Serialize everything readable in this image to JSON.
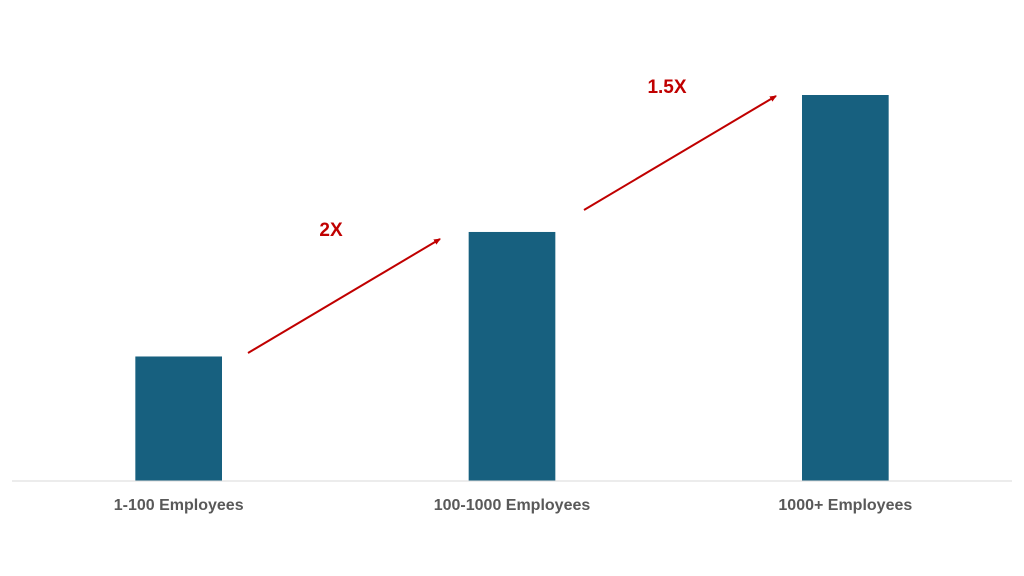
{
  "chart_data": {
    "type": "bar",
    "categories": [
      "1-100 Employees",
      "100-1000 Employees",
      "1000+ Employees"
    ],
    "values": [
      1,
      2,
      3.1
    ],
    "color": "#17607f",
    "ylim": [
      0,
      3.1
    ],
    "annotations": [
      "2X",
      "1.5X"
    ]
  }
}
